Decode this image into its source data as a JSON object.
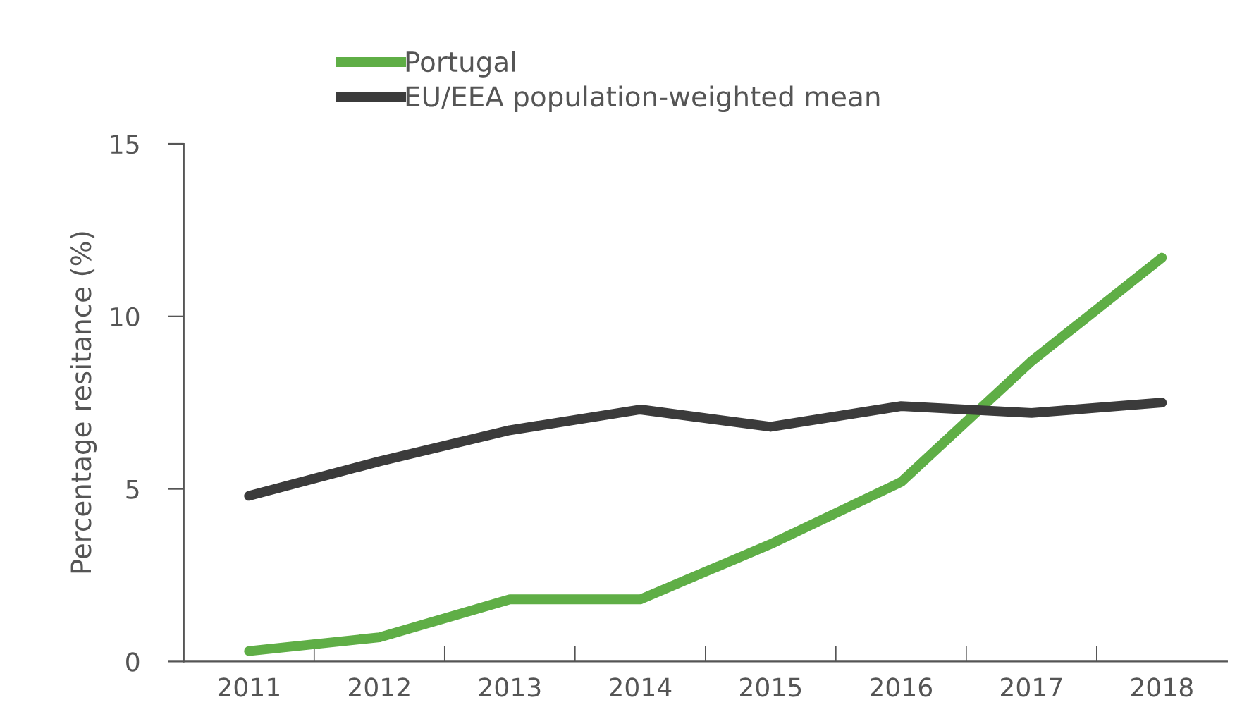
{
  "chart_data": {
    "type": "line",
    "ylabel": "Percentage resitance (%)",
    "categories": [
      "2011",
      "2012",
      "2013",
      "2014",
      "2015",
      "2016",
      "2017",
      "2018"
    ],
    "series": [
      {
        "name": "Portugal",
        "color": "#5fae46",
        "values": [
          0.3,
          0.7,
          1.8,
          1.8,
          3.4,
          5.2,
          8.7,
          11.7
        ]
      },
      {
        "name": "EU/EEA population-weighted mean",
        "color": "#3b3b3b",
        "values": [
          4.8,
          5.8,
          6.7,
          7.3,
          6.8,
          7.4,
          7.2,
          7.5
        ]
      }
    ],
    "ylim": [
      0,
      15
    ],
    "yticks": [
      0,
      5,
      10,
      15
    ],
    "grid": false,
    "legend": "top left",
    "marker": "none",
    "line_style": "solid"
  }
}
